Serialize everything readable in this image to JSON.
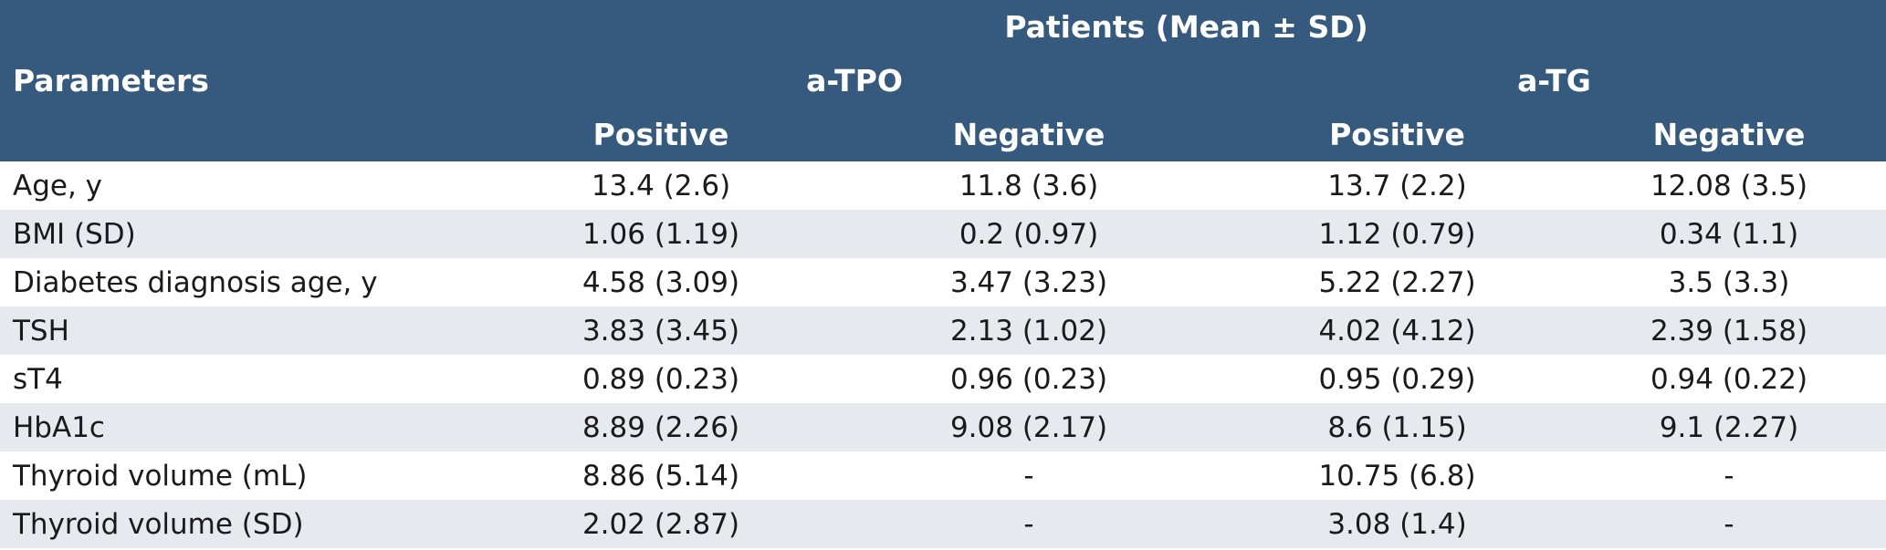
{
  "header": {
    "parameters_label": "Parameters",
    "group_title": "Patients (Mean ± SD)",
    "subgroups": [
      "a-TPO",
      "a-TG"
    ],
    "columns": [
      "Positive",
      "Negative",
      "Positive",
      "Negative"
    ]
  },
  "rows": [
    {
      "label": "Age, y",
      "values": [
        "13.4 (2.6)",
        "11.8 (3.6)",
        "13.7 (2.2)",
        "12.08 (3.5)"
      ]
    },
    {
      "label": "BMI (SD)",
      "values": [
        "1.06 (1.19)",
        "0.2 (0.97)",
        "1.12 (0.79)",
        "0.34 (1.1)"
      ]
    },
    {
      "label": "Diabetes diagnosis age, y",
      "values": [
        "4.58 (3.09)",
        "3.47 (3.23)",
        "5.22 (2.27)",
        "3.5 (3.3)"
      ]
    },
    {
      "label": "TSH",
      "values": [
        "3.83 (3.45)",
        "2.13 (1.02)",
        "4.02 (4.12)",
        "2.39 (1.58)"
      ]
    },
    {
      "label": "sT4",
      "values": [
        "0.89 (0.23)",
        "0.96 (0.23)",
        "0.95 (0.29)",
        "0.94 (0.22)"
      ]
    },
    {
      "label": "HbA1c",
      "values": [
        "8.89 (2.26)",
        "9.08 (2.17)",
        "8.6 (1.15)",
        "9.1 (2.27)"
      ]
    },
    {
      "label": "Thyroid volume (mL)",
      "values": [
        "8.86 (5.14)",
        "-",
        "10.75 (6.8)",
        "-"
      ]
    },
    {
      "label": "Thyroid volume (SD)",
      "values": [
        "2.02 (2.87)",
        "-",
        "3.08 (1.4)",
        "-"
      ]
    }
  ],
  "colors": {
    "header_bg": "#355a7e",
    "header_text": "#ffffff",
    "stripe_bg": "#e6eaee"
  }
}
